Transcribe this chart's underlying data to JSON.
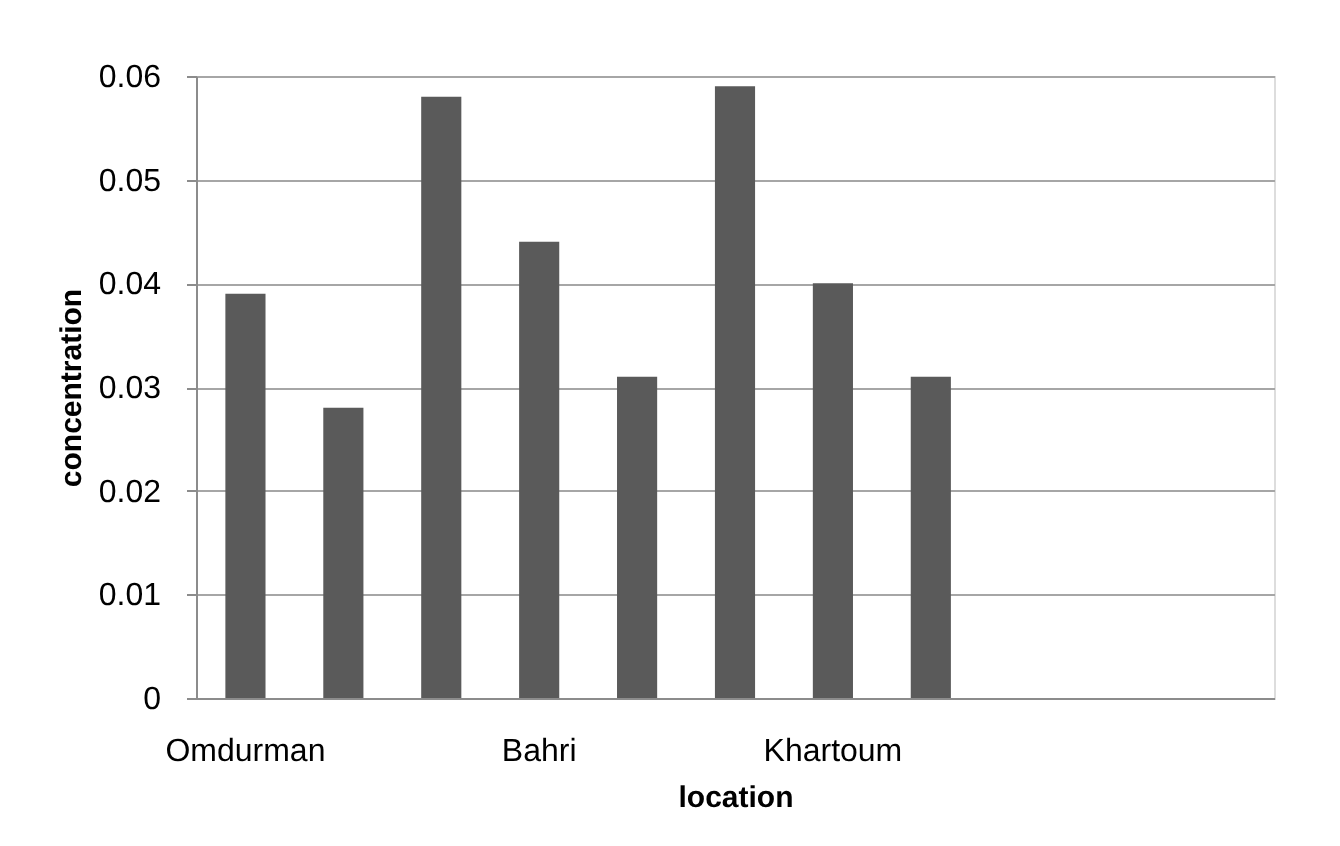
{
  "chart_data": {
    "type": "bar",
    "xlabel": "location",
    "ylabel": "concentration",
    "categories": [
      "Omdurman",
      null,
      null,
      "Bahri",
      null,
      null,
      "Khartoum",
      null,
      null,
      null,
      null
    ],
    "values": [
      0.039,
      0.028,
      0.058,
      0.044,
      0.031,
      0.059,
      0.04,
      0.031,
      null,
      null,
      null
    ],
    "color": "#5a5a5a",
    "ylim": [
      0,
      0.06
    ],
    "yticks": [
      0,
      0.01,
      0.02,
      0.03,
      0.04,
      0.05,
      0.06
    ],
    "grid": "y"
  }
}
